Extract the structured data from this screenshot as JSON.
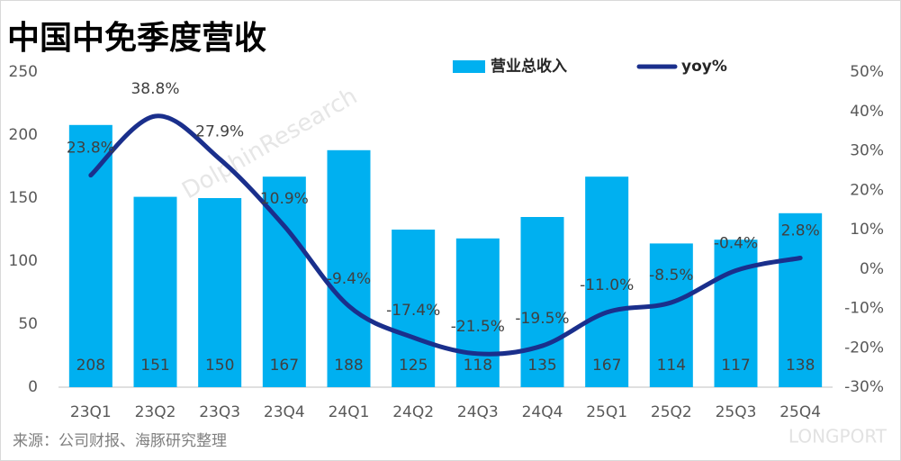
{
  "chart_data": {
    "type": "bar",
    "title": "中国中免季度营收",
    "categories": [
      "23Q1",
      "23Q2",
      "23Q3",
      "23Q4",
      "24Q1",
      "24Q2",
      "24Q3",
      "24Q4",
      "25Q1",
      "25Q2",
      "25Q3",
      "25Q4"
    ],
    "series": [
      {
        "name": "营业总收入",
        "type": "bar",
        "color": "#00b0f0",
        "values": [
          208,
          151,
          150,
          167,
          188,
          125,
          118,
          135,
          167,
          114,
          117,
          138
        ]
      },
      {
        "name": "yoy%",
        "type": "line",
        "axis": "y2",
        "color": "#1a2f8c",
        "values": [
          23.8,
          38.8,
          27.9,
          10.9,
          -9.4,
          -17.4,
          -21.5,
          -19.5,
          -11.0,
          -8.5,
          -0.4,
          2.8
        ],
        "value_labels": [
          "23.8%",
          "38.8%",
          "27.9%",
          "10.9%",
          "-9.4%",
          "-17.4%",
          "-21.5%",
          "-19.5%",
          "-11.0%",
          "-8.5%",
          "-0.4%",
          "2.8%"
        ]
      }
    ],
    "ylim": [
      0,
      250
    ],
    "yticks": [
      0,
      50,
      100,
      150,
      200,
      250
    ],
    "y2lim": [
      -30,
      50
    ],
    "y2ticks": [
      {
        "value": -30,
        "label": "-30%"
      },
      {
        "value": -20,
        "label": "-20%"
      },
      {
        "value": -10,
        "label": "-10%"
      },
      {
        "value": 0,
        "label": "0%"
      },
      {
        "value": 10,
        "label": "10%"
      },
      {
        "value": 20,
        "label": "20%"
      },
      {
        "value": 30,
        "label": "30%"
      },
      {
        "value": 40,
        "label": "40%"
      },
      {
        "value": 50,
        "label": "50%"
      }
    ],
    "source": "来源：公司财报、海豚研究整理",
    "watermarks": [
      "DolphinResearch",
      "LONGPORT"
    ]
  }
}
